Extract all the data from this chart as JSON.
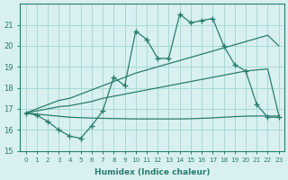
{
  "xlabel": "Humidex (Indice chaleur)",
  "x": [
    0,
    1,
    2,
    3,
    4,
    5,
    6,
    7,
    8,
    9,
    10,
    11,
    12,
    13,
    14,
    15,
    16,
    17,
    18,
    19,
    20,
    21,
    22,
    23
  ],
  "line_observed": [
    16.8,
    16.7,
    16.4,
    16.0,
    15.7,
    15.6,
    16.2,
    16.9,
    18.5,
    18.1,
    20.7,
    20.3,
    19.4,
    19.4,
    21.5,
    21.1,
    21.2,
    21.3,
    20.0,
    19.1,
    18.8,
    17.2,
    16.6,
    16.6
  ],
  "line_max": [
    16.8,
    17.0,
    17.2,
    17.4,
    17.5,
    17.7,
    17.9,
    18.1,
    18.3,
    18.5,
    18.7,
    18.85,
    19.0,
    19.15,
    19.3,
    19.45,
    19.6,
    19.75,
    19.9,
    20.05,
    20.2,
    20.35,
    20.5,
    20.0
  ],
  "line_mean": [
    16.8,
    16.9,
    17.0,
    17.1,
    17.15,
    17.25,
    17.35,
    17.5,
    17.6,
    17.7,
    17.8,
    17.9,
    18.0,
    18.1,
    18.2,
    18.3,
    18.4,
    18.5,
    18.6,
    18.7,
    18.8,
    18.85,
    18.9,
    16.7
  ],
  "line_min": [
    16.8,
    16.75,
    16.7,
    16.65,
    16.6,
    16.58,
    16.56,
    16.55,
    16.54,
    16.53,
    16.52,
    16.52,
    16.52,
    16.52,
    16.52,
    16.53,
    16.55,
    16.57,
    16.6,
    16.63,
    16.65,
    16.66,
    16.66,
    16.66
  ],
  "color": "#2a7c6f",
  "bg_color": "#d8f0f0",
  "grid_color": "#a8d8d8",
  "ylim": [
    15,
    22
  ],
  "yticks": [
    15,
    16,
    17,
    18,
    19,
    20,
    21
  ],
  "xticks": [
    0,
    1,
    2,
    3,
    4,
    5,
    6,
    7,
    8,
    9,
    10,
    11,
    12,
    13,
    14,
    15,
    16,
    17,
    18,
    19,
    20,
    21,
    22,
    23
  ]
}
